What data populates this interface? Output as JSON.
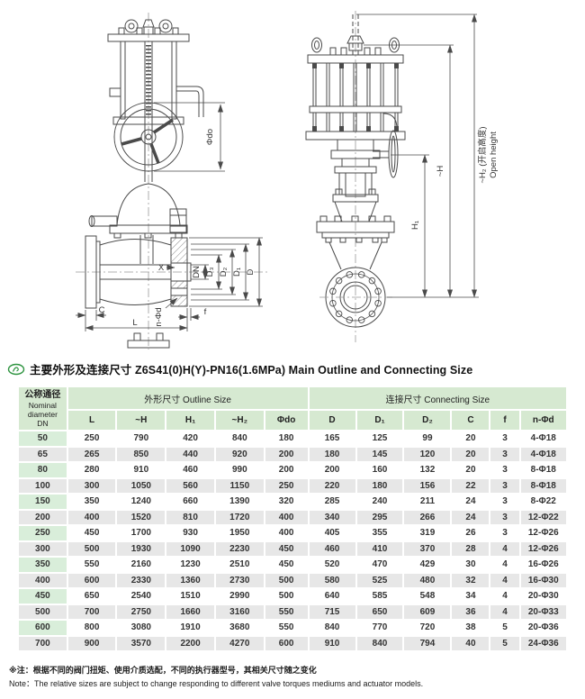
{
  "title": {
    "text": "主要外形及连接尺寸 Z6S41(0)H(Y)-PN16(1.6MPa) Main Outline and Connecting Size"
  },
  "drawing": {
    "left": {
      "phi_do": "Φdo",
      "x": "X",
      "dn": "DN",
      "d3": "D₃",
      "d2": "D₂",
      "d1": "D₁",
      "d": "D",
      "c": "C",
      "l": "L",
      "n_phi_d": "n-Φd",
      "f": "f"
    },
    "right": {
      "h1": "H₁",
      "h": "~H",
      "h2": "~H₂ (开启高度)",
      "h2_en": "Open height"
    }
  },
  "table": {
    "nominal_header": {
      "line1": "公称通径",
      "line2": "Nominal",
      "line3": "diameter",
      "line4": "DN"
    },
    "outline_group": "外形尺寸 Outline Size",
    "connecting_group": "连接尺寸 Connecting Size",
    "columns": [
      "L",
      "~H",
      "H₁",
      "~H₂",
      "Φdo",
      "D",
      "D₁",
      "D₂",
      "C",
      "f",
      "n-Φd"
    ],
    "rows": [
      [
        "50",
        "250",
        "790",
        "420",
        "840",
        "180",
        "165",
        "125",
        "99",
        "20",
        "3",
        "4-Φ18"
      ],
      [
        "65",
        "265",
        "850",
        "440",
        "920",
        "200",
        "180",
        "145",
        "120",
        "20",
        "3",
        "4-Φ18"
      ],
      [
        "80",
        "280",
        "910",
        "460",
        "990",
        "200",
        "200",
        "160",
        "132",
        "20",
        "3",
        "8-Φ18"
      ],
      [
        "100",
        "300",
        "1050",
        "560",
        "1150",
        "250",
        "220",
        "180",
        "156",
        "22",
        "3",
        "8-Φ18"
      ],
      [
        "150",
        "350",
        "1240",
        "660",
        "1390",
        "320",
        "285",
        "240",
        "211",
        "24",
        "3",
        "8-Φ22"
      ],
      [
        "200",
        "400",
        "1520",
        "810",
        "1720",
        "400",
        "340",
        "295",
        "266",
        "24",
        "3",
        "12-Φ22"
      ],
      [
        "250",
        "450",
        "1700",
        "930",
        "1950",
        "400",
        "405",
        "355",
        "319",
        "26",
        "3",
        "12-Φ26"
      ],
      [
        "300",
        "500",
        "1930",
        "1090",
        "2230",
        "450",
        "460",
        "410",
        "370",
        "28",
        "4",
        "12-Φ26"
      ],
      [
        "350",
        "550",
        "2160",
        "1230",
        "2510",
        "450",
        "520",
        "470",
        "429",
        "30",
        "4",
        "16-Φ26"
      ],
      [
        "400",
        "600",
        "2330",
        "1360",
        "2730",
        "500",
        "580",
        "525",
        "480",
        "32",
        "4",
        "16-Φ30"
      ],
      [
        "450",
        "650",
        "2540",
        "1510",
        "2990",
        "500",
        "640",
        "585",
        "548",
        "34",
        "4",
        "20-Φ30"
      ],
      [
        "500",
        "700",
        "2750",
        "1660",
        "3160",
        "550",
        "715",
        "650",
        "609",
        "36",
        "4",
        "20-Φ33"
      ],
      [
        "600",
        "800",
        "3080",
        "1910",
        "3680",
        "550",
        "840",
        "770",
        "720",
        "38",
        "5",
        "20-Φ36"
      ],
      [
        "700",
        "900",
        "3570",
        "2200",
        "4270",
        "600",
        "910",
        "840",
        "794",
        "40",
        "5",
        "24-Φ36"
      ]
    ]
  },
  "notes": {
    "zh": "※注：根据不同的阀门扭矩、使用介质选配，不同的执行器型号，其相关尺寸随之变化",
    "en": "Note：The relative sizes are subject to change responding to different valve torques  mediums and actuator models."
  },
  "colors": {
    "header_green": "#d6e9d1",
    "dn_column_green": "#d9eeda",
    "stripe_gray": "#e7e7e7",
    "line_dark": "#4a4a4a",
    "brand_green": "#2e9440"
  }
}
